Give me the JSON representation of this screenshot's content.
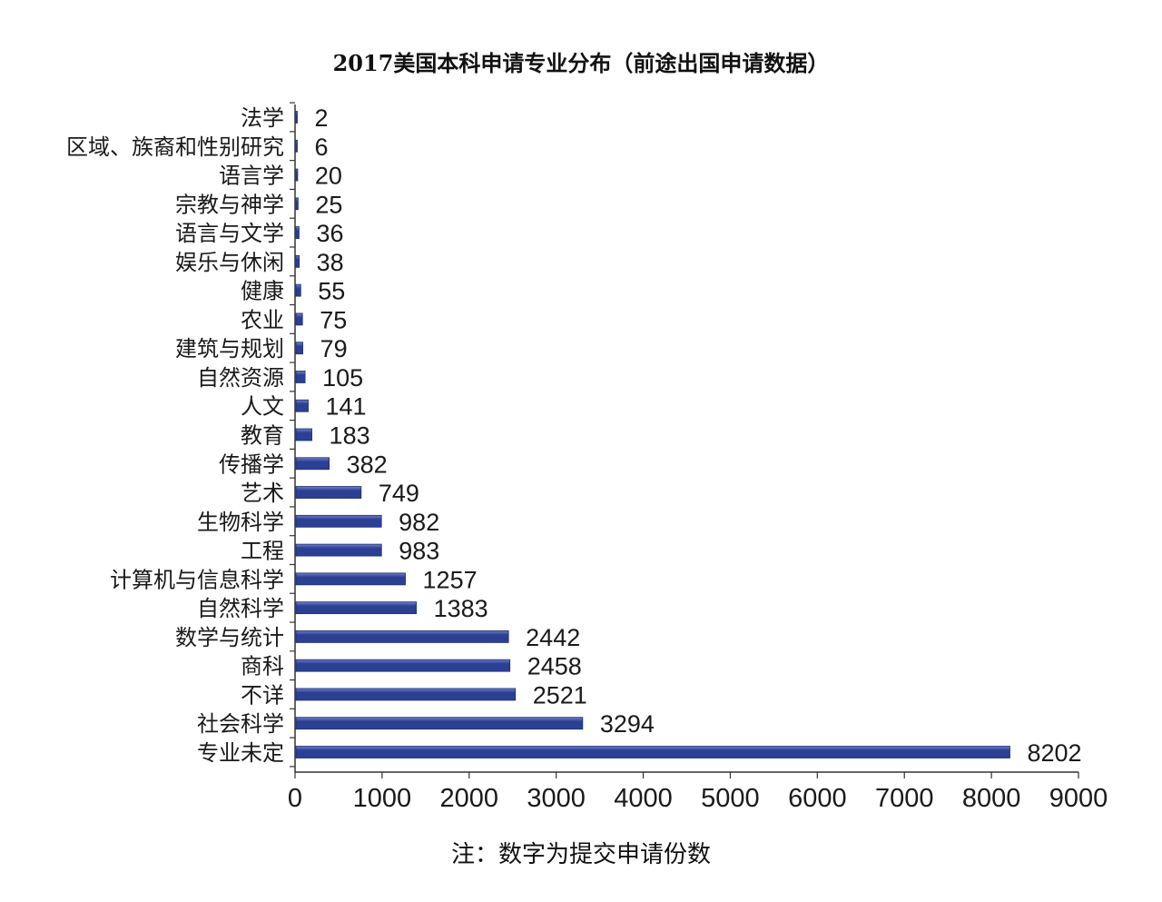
{
  "chart_data": {
    "type": "bar",
    "orientation": "horizontal",
    "title": "2017美国本科申请专业分布（前途出国申请数据）",
    "note": "注：数字为提交申请份数",
    "categories": [
      "法学",
      "区域、族裔和性别研究",
      "语言学",
      "宗教与神学",
      "语言与文学",
      "娱乐与休闲",
      "健康",
      "农业",
      "建筑与规划",
      "自然资源",
      "人文",
      "教育",
      "传播学",
      "艺术",
      "生物科学",
      "工程",
      "计算机与信息科学",
      "自然科学",
      "数学与统计",
      "商科",
      "不详",
      "社会科学",
      "专业未定"
    ],
    "values": [
      2,
      6,
      20,
      25,
      36,
      38,
      55,
      75,
      79,
      105,
      141,
      183,
      382,
      749,
      982,
      983,
      1257,
      1383,
      2442,
      2458,
      2521,
      3294,
      8202
    ],
    "value_labels": [
      "2",
      "6",
      "20",
      "25",
      "36",
      "38",
      "55",
      "75",
      "79",
      "105",
      "141",
      "183",
      "382",
      "749",
      "982",
      "983",
      "1257",
      "1383",
      "2442",
      "2458",
      "2521",
      "3294",
      "8202"
    ],
    "xlim": [
      0,
      9000
    ],
    "xticks": [
      0,
      1000,
      2000,
      3000,
      4000,
      5000,
      6000,
      7000,
      8000,
      9000
    ],
    "xtick_labels": [
      "0",
      "1000",
      "2000",
      "3000",
      "4000",
      "5000",
      "6000",
      "7000",
      "8000",
      "9000"
    ],
    "xlabel": "",
    "ylabel": "",
    "grid": false,
    "bar_color": "#2b3f93",
    "bar_highlight": "#6f7fc8"
  }
}
